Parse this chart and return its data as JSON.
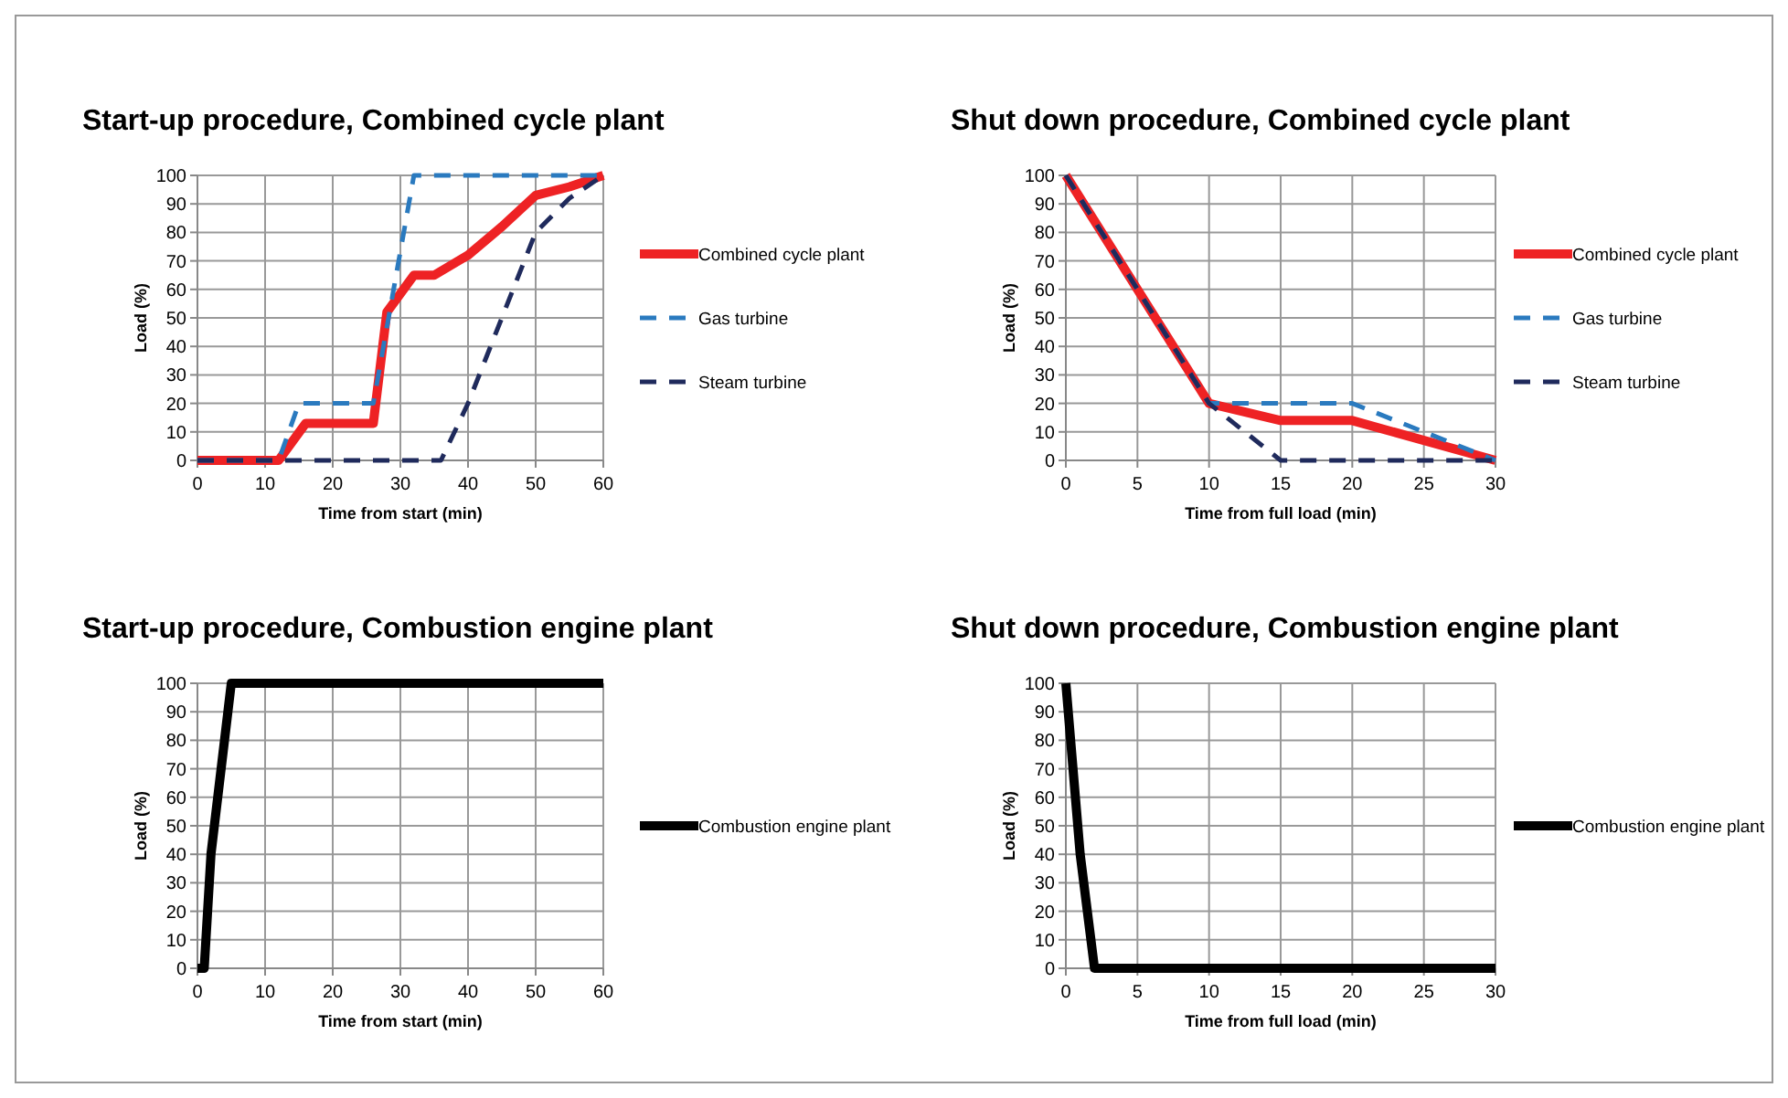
{
  "chart_data": [
    {
      "type": "line",
      "title": "Start-up procedure, Combined cycle plant",
      "xlabel": "Time from start (min)",
      "ylabel": "Load (%)",
      "xlim": [
        0,
        60
      ],
      "xticks": [
        0,
        10,
        20,
        30,
        40,
        50,
        60
      ],
      "ylim": [
        0,
        100
      ],
      "yticks": [
        0,
        10,
        20,
        30,
        40,
        50,
        60,
        70,
        80,
        90,
        100
      ],
      "grid": true,
      "legend": "right",
      "series": [
        {
          "name": "Combined cycle plant",
          "color": "#ee2224",
          "line_style": "solid",
          "x": [
            0,
            12,
            16,
            26,
            28,
            32,
            35,
            40,
            45,
            50,
            55,
            60
          ],
          "values": [
            0,
            0,
            13,
            13,
            52,
            65,
            65,
            72,
            82,
            93,
            96,
            100
          ]
        },
        {
          "name": "Gas turbine",
          "color": "#2a7abf",
          "line_style": "dashed",
          "x": [
            0,
            12,
            15,
            26,
            32,
            60
          ],
          "values": [
            0,
            0,
            20,
            20,
            100,
            100
          ]
        },
        {
          "name": "Steam turbine",
          "color": "#1f2a5c",
          "line_style": "dashed",
          "x": [
            0,
            36,
            40,
            45,
            50,
            55,
            60
          ],
          "values": [
            0,
            0,
            20,
            50,
            80,
            92,
            100
          ]
        }
      ]
    },
    {
      "type": "line",
      "title": "Shut down procedure, Combined cycle plant",
      "xlabel": "Time from full load  (min)",
      "ylabel": "Load (%)",
      "xlim": [
        0,
        30
      ],
      "xticks": [
        0,
        5,
        10,
        15,
        20,
        25,
        30
      ],
      "ylim": [
        0,
        100
      ],
      "yticks": [
        0,
        10,
        20,
        30,
        40,
        50,
        60,
        70,
        80,
        90,
        100
      ],
      "grid": true,
      "legend": "right",
      "series": [
        {
          "name": "Combined cycle plant",
          "color": "#ee2224",
          "line_style": "solid",
          "x": [
            0,
            5,
            10,
            15,
            20,
            25,
            30
          ],
          "values": [
            100,
            60,
            20,
            14,
            14,
            7,
            0
          ]
        },
        {
          "name": "Gas turbine",
          "color": "#2a7abf",
          "line_style": "dashed",
          "x": [
            0,
            10,
            20,
            30
          ],
          "values": [
            100,
            20,
            20,
            0
          ]
        },
        {
          "name": "Steam turbine",
          "color": "#1f2a5c",
          "line_style": "dashed",
          "x": [
            0,
            10,
            15,
            30
          ],
          "values": [
            100,
            20,
            0,
            0
          ]
        }
      ]
    },
    {
      "type": "line",
      "title": "Start-up procedure, Combustion engine plant",
      "xlabel": "Time from start (min)",
      "ylabel": "Load (%)",
      "xlim": [
        0,
        60
      ],
      "xticks": [
        0,
        10,
        20,
        30,
        40,
        50,
        60
      ],
      "ylim": [
        0,
        100
      ],
      "yticks": [
        0,
        10,
        20,
        30,
        40,
        50,
        60,
        70,
        80,
        90,
        100
      ],
      "grid": true,
      "legend": "right",
      "series": [
        {
          "name": "Combustion engine plant",
          "color": "#000000",
          "line_style": "solid",
          "x": [
            0,
            1,
            2,
            4,
            5,
            60
          ],
          "values": [
            0,
            0,
            40,
            80,
            100,
            100
          ]
        }
      ]
    },
    {
      "type": "line",
      "title": "Shut down procedure, Combustion engine plant",
      "xlabel": "Time from full load  (min)",
      "ylabel": "Load (%)",
      "xlim": [
        0,
        30
      ],
      "xticks": [
        0,
        5,
        10,
        15,
        20,
        25,
        30
      ],
      "ylim": [
        0,
        100
      ],
      "yticks": [
        0,
        10,
        20,
        30,
        40,
        50,
        60,
        70,
        80,
        90,
        100
      ],
      "grid": true,
      "legend": "right",
      "series": [
        {
          "name": "Combustion engine plant",
          "color": "#000000",
          "line_style": "solid",
          "x": [
            0,
            1,
            2,
            30
          ],
          "values": [
            100,
            40,
            0,
            0
          ]
        }
      ]
    }
  ]
}
